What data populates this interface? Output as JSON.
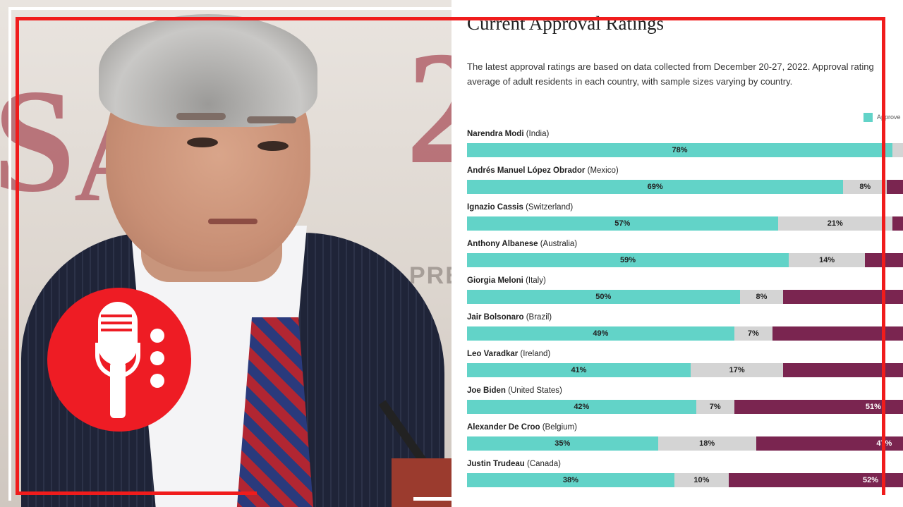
{
  "logo": {
    "icon": "microphone-icon",
    "color": "#ee1c24"
  },
  "chart_data": {
    "type": "bar",
    "orientation": "horizontal",
    "stacked": true,
    "title": "Current Approval Ratings",
    "description": "The latest approval ratings are based on data collected from December 20-27, 2022. Approval rating",
    "description_line2": "average of adult residents in each country, with sample sizes varying by country.",
    "legend": [
      {
        "label": "Approve",
        "color": "#62d3c8"
      }
    ],
    "colors": {
      "approve": "#62d3c8",
      "neutral": "#d4d4d4",
      "disapprove": "#7a2550"
    },
    "xlim": [
      0,
      100
    ],
    "leaders": [
      {
        "name": "Narendra Modi",
        "country": "(India)",
        "approve": 78,
        "neutral": null,
        "disapprove": null
      },
      {
        "name": "Andrés Manuel López Obrador",
        "country": "(Mexico)",
        "approve": 69,
        "neutral": 8,
        "disapprove": null
      },
      {
        "name": "Ignazio Cassis",
        "country": "(Switzerland)",
        "approve": 57,
        "neutral": 21,
        "disapprove": null
      },
      {
        "name": "Anthony Albanese",
        "country": "(Australia)",
        "approve": 59,
        "neutral": 14,
        "disapprove": null
      },
      {
        "name": "Giorgia Meloni",
        "country": "(Italy)",
        "approve": 50,
        "neutral": 8,
        "disapprove": null
      },
      {
        "name": "Jair Bolsonaro",
        "country": "(Brazil)",
        "approve": 49,
        "neutral": 7,
        "disapprove": null
      },
      {
        "name": "Leo Varadkar",
        "country": "(Ireland)",
        "approve": 41,
        "neutral": 17,
        "disapprove": null
      },
      {
        "name": "Joe Biden",
        "country": "(United States)",
        "approve": 42,
        "neutral": 7,
        "disapprove": 51
      },
      {
        "name": "Alexander De Croo",
        "country": "(Belgium)",
        "approve": 35,
        "neutral": 18,
        "disapprove": 47
      },
      {
        "name": "Justin Trudeau",
        "country": "(Canada)",
        "approve": 38,
        "neutral": 10,
        "disapprove": 52
      }
    ]
  }
}
